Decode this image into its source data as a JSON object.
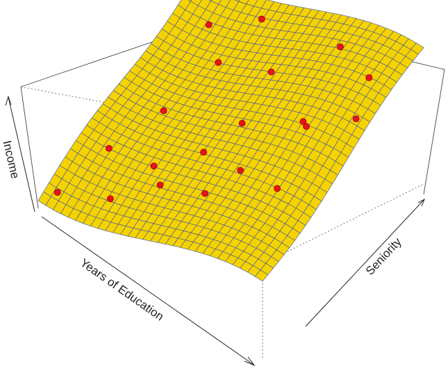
{
  "chart_data": {
    "type": "surface3d",
    "x_label": "Years of Education",
    "y_label": "Seniority",
    "z_label": "Income",
    "xlim": [
      0,
      1
    ],
    "ylim": [
      0,
      1
    ],
    "zlim": [
      0,
      1
    ],
    "surface_color": "#f5d300",
    "mesh_color": "#3b4fa8",
    "point_color": "#e8141c",
    "points": {
      "x": [
        0.05,
        0.1,
        0.25,
        0.3,
        0.45,
        0.6,
        0.75,
        0.85,
        0.9,
        0.2,
        0.35,
        0.5,
        0.55,
        0.7,
        0.8,
        0.15,
        0.4,
        0.65,
        0.95,
        0.3
      ],
      "y": [
        0.05,
        0.3,
        0.1,
        0.7,
        0.4,
        0.2,
        0.6,
        0.3,
        0.8,
        0.5,
        0.9,
        0.75,
        0.5,
        0.9,
        0.55,
        0.85,
        0.2,
        0.35,
        0.65,
        0.3
      ],
      "z": [
        0.1,
        0.17,
        0.2,
        0.5,
        0.38,
        0.47,
        0.66,
        0.64,
        0.88,
        0.3,
        0.62,
        0.58,
        0.56,
        0.78,
        0.73,
        0.44,
        0.33,
        0.51,
        0.82,
        0.25
      ]
    }
  }
}
